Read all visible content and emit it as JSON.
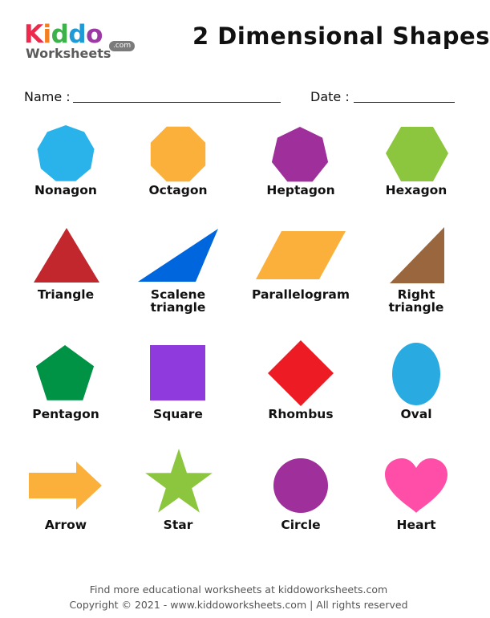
{
  "logo": {
    "letters": [
      "K",
      "i",
      "d",
      "d",
      "o"
    ],
    "letter_colors": [
      "#ee2a4c",
      "#f57f20",
      "#3db24b",
      "#1e9ad6",
      "#9c3aa5"
    ],
    "subtitle": "Worksheets",
    "domain": ".com"
  },
  "title": "2 Dimensional Shapes",
  "fields": {
    "name_label": "Name :",
    "date_label": "Date :"
  },
  "shapes": [
    {
      "label_lines": [
        "Nonagon"
      ],
      "icon": "nonagon-icon",
      "color": "#2ab3ea"
    },
    {
      "label_lines": [
        "Octagon"
      ],
      "icon": "octagon-icon",
      "color": "#fbb03b"
    },
    {
      "label_lines": [
        "Heptagon"
      ],
      "icon": "heptagon-icon",
      "color": "#9e2f9b"
    },
    {
      "label_lines": [
        "Hexagon"
      ],
      "icon": "hexagon-icon",
      "color": "#8cc63f"
    },
    {
      "label_lines": [
        "Triangle"
      ],
      "icon": "triangle-icon",
      "color": "#c1272d"
    },
    {
      "label_lines": [
        "Scalene",
        "triangle"
      ],
      "icon": "scalene-triangle-icon",
      "color": "#0066dd"
    },
    {
      "label_lines": [
        "Parallelogram"
      ],
      "icon": "parallelogram-icon",
      "color": "#fbb03b"
    },
    {
      "label_lines": [
        "Right",
        "triangle"
      ],
      "icon": "right-triangle-icon",
      "color": "#99663d"
    },
    {
      "label_lines": [
        "Pentagon"
      ],
      "icon": "pentagon-icon",
      "color": "#009245"
    },
    {
      "label_lines": [
        "Square"
      ],
      "icon": "square-icon",
      "color": "#8e3adc"
    },
    {
      "label_lines": [
        "Rhombus"
      ],
      "icon": "rhombus-icon",
      "color": "#ed1c24"
    },
    {
      "label_lines": [
        "Oval"
      ],
      "icon": "oval-icon",
      "color": "#29abe2"
    },
    {
      "label_lines": [
        "Arrow"
      ],
      "icon": "arrow-icon",
      "color": "#fbb03b"
    },
    {
      "label_lines": [
        "Star"
      ],
      "icon": "star-icon",
      "color": "#8cc63f"
    },
    {
      "label_lines": [
        "Circle"
      ],
      "icon": "circle-icon",
      "color": "#9e2f9b"
    },
    {
      "label_lines": [
        "Heart"
      ],
      "icon": "heart-icon",
      "color": "#ff4ea7"
    }
  ],
  "footer": {
    "line1": "Find more educational worksheets at kiddoworksheets.com",
    "line2": "Copyright © 2021 - www.kiddoworksheets.com  |  All rights reserved"
  }
}
